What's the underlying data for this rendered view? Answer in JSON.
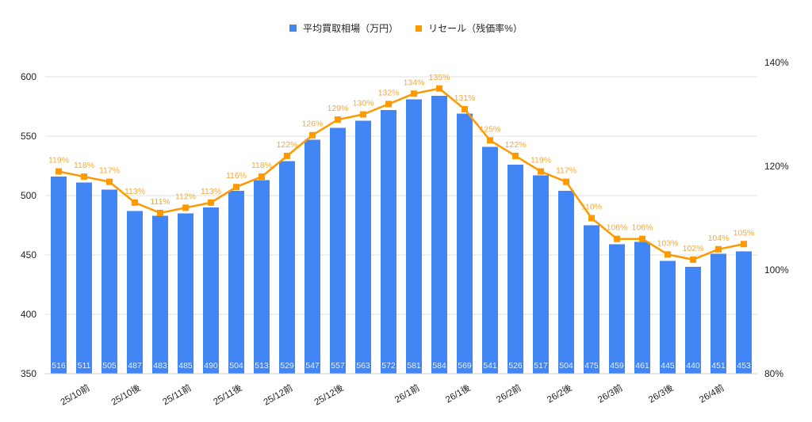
{
  "legend": {
    "bar_label": "平均買取相場（万円）",
    "line_label": "リセール（残価率%）"
  },
  "colors": {
    "bar": "#4285F4",
    "line": "#FF9900",
    "line_label": "#F4A93A",
    "bar_label": "#E8F0FE",
    "grid": "#E0E0E0",
    "axis_text": "#222222"
  },
  "chart_data": {
    "type": "bar+line",
    "title": "",
    "categories": [
      "",
      "25/10前",
      "",
      "25/10後",
      "",
      "25/11前",
      "",
      "25/11後",
      "",
      "25/12前",
      "",
      "25/12後",
      "",
      "",
      "26/1前",
      "",
      "26/1後",
      "",
      "26/2前",
      "",
      "26/2後",
      "",
      "26/3前",
      "",
      "26/3後",
      "",
      "26/4前",
      ""
    ],
    "visible_tick_labels": [
      "25/10前",
      "25/10後",
      "25/11前",
      "25/11後",
      "25/12前",
      "25/12後",
      "26/1前",
      "26/1後",
      "26/2前",
      "26/2後",
      "26/3前",
      "26/3後",
      "26/4前"
    ],
    "series": [
      {
        "name": "平均買取相場（万円）",
        "type": "bar",
        "axis": "left",
        "values": [
          516,
          511,
          505,
          487,
          483,
          485,
          490,
          504,
          513,
          529,
          547,
          557,
          563,
          572,
          581,
          584,
          569,
          541,
          526,
          517,
          504,
          475,
          459,
          461,
          445,
          440,
          451,
          453
        ]
      },
      {
        "name": "リセール（残価率%）",
        "type": "line",
        "axis": "right",
        "values": [
          119,
          118,
          117,
          113,
          111,
          112,
          113,
          116,
          118,
          122,
          126,
          129,
          130,
          132,
          134,
          135,
          131,
          125,
          122,
          119,
          117,
          110,
          106,
          106,
          103,
          102,
          104,
          105
        ],
        "labels_suffix": "%"
      }
    ],
    "left_axis": {
      "ylim": [
        350,
        600
      ],
      "ticks": [
        350,
        400,
        450,
        500,
        550,
        600
      ],
      "label": ""
    },
    "right_axis": {
      "ylim": [
        80,
        140
      ],
      "ticks": [
        "80%",
        "100%",
        "120%",
        "140%"
      ],
      "label": ""
    },
    "grid": true,
    "legend_position": "top"
  }
}
